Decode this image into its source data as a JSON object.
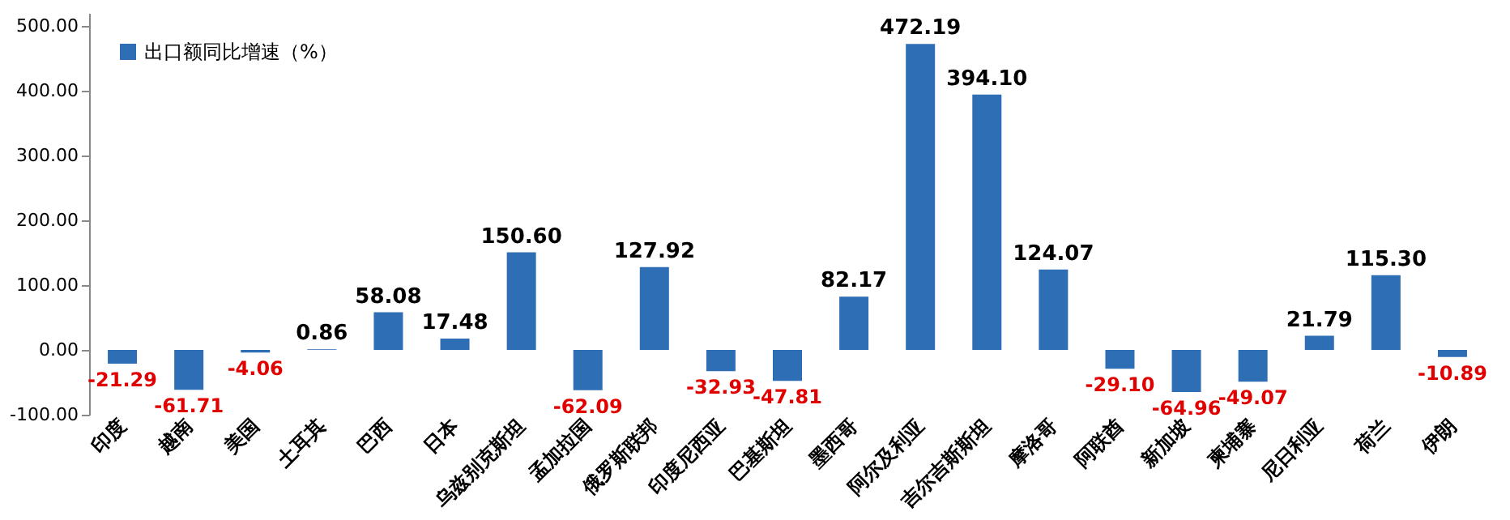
{
  "chart_data": {
    "type": "bar",
    "categories": [
      "印度",
      "越南",
      "美国",
      "土耳其",
      "巴西",
      "日本",
      "乌兹别克斯坦",
      "孟加拉国",
      "俄罗斯联邦",
      "印度尼西亚",
      "巴基斯坦",
      "墨西哥",
      "阿尔及利亚",
      "吉尔吉斯斯坦",
      "摩洛哥",
      "阿联酋",
      "新加坡",
      "柬埔寨",
      "尼日利亚",
      "荷兰",
      "伊朗"
    ],
    "series": [
      {
        "name": "出口额同比增速（%）",
        "color": "#2e6eb5",
        "values": [
          -21.29,
          -61.71,
          -4.06,
          0.86,
          58.08,
          17.48,
          150.6,
          -62.09,
          127.92,
          -32.93,
          -47.81,
          82.17,
          472.19,
          394.1,
          124.07,
          -29.1,
          -64.96,
          -49.07,
          21.79,
          115.3,
          -10.89
        ],
        "value_labels": [
          "-21.29",
          "-61.71",
          "-4.06",
          "0.86",
          "58.08",
          "17.48",
          "150.60",
          "-62.09",
          "127.92",
          "-32.93",
          "-47.81",
          "82.17",
          "472.19",
          "394.10",
          "124.07",
          "-29.10",
          "-64.96",
          "-49.07",
          "21.79",
          "115.30",
          "-10.89"
        ]
      }
    ],
    "ylim": [
      -100,
      520
    ],
    "yticks": [
      {
        "value": -100,
        "label": "-100.00"
      },
      {
        "value": 0,
        "label": "0.00"
      },
      {
        "value": 100,
        "label": "100.00"
      },
      {
        "value": 200,
        "label": "200.00"
      },
      {
        "value": 300,
        "label": "300.00"
      },
      {
        "value": 400,
        "label": "400.00"
      },
      {
        "value": 500,
        "label": "500.00"
      }
    ],
    "grid": false,
    "legend": "top left"
  }
}
